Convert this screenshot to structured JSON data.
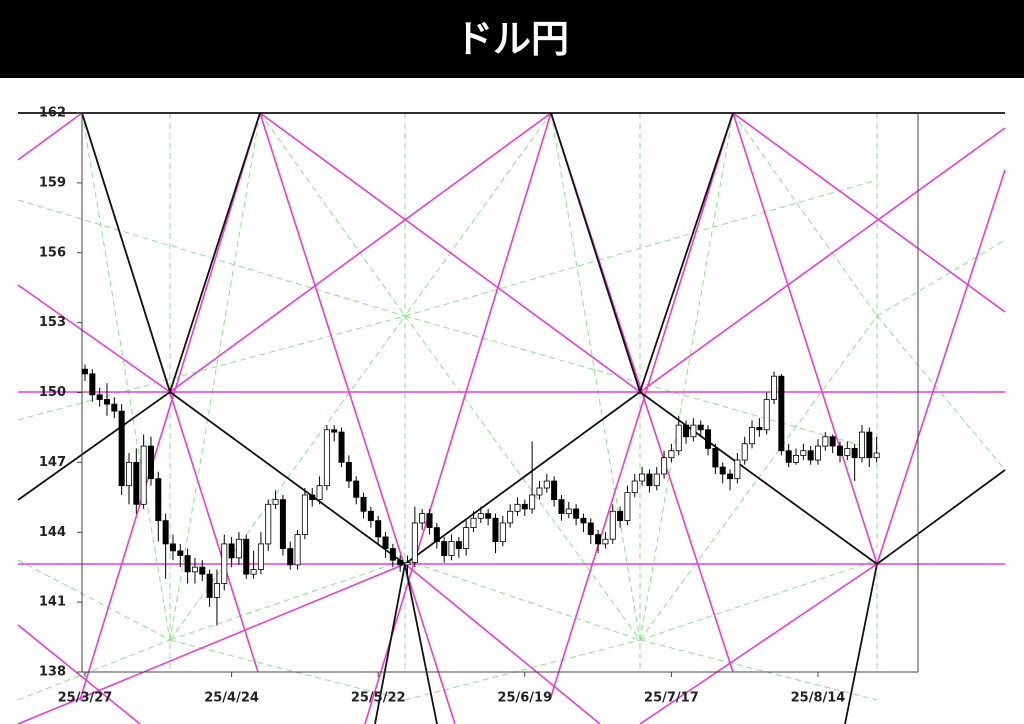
{
  "chart_data": {
    "type": "candlestick",
    "title": "ドル円",
    "categories": [
      "25/3/27",
      null,
      null,
      null,
      null,
      null,
      null,
      null,
      null,
      null,
      null,
      null,
      null,
      null,
      null,
      null,
      null,
      null,
      null,
      null,
      "25/4/24",
      null,
      null,
      null,
      null,
      null,
      null,
      null,
      null,
      null,
      null,
      null,
      null,
      null,
      null,
      null,
      null,
      null,
      null,
      null,
      "25/5/22",
      null,
      null,
      null,
      null,
      null,
      null,
      null,
      null,
      null,
      null,
      null,
      null,
      null,
      null,
      null,
      null,
      null,
      null,
      null,
      "25/6/19",
      null,
      null,
      null,
      null,
      null,
      null,
      null,
      null,
      null,
      null,
      null,
      null,
      null,
      null,
      null,
      null,
      null,
      null,
      null,
      "25/7/17",
      null,
      null,
      null,
      null,
      null,
      null,
      null,
      null,
      null,
      null,
      null,
      null,
      null,
      null,
      null,
      null,
      null,
      null,
      null,
      "25/8/14",
      null,
      null,
      null,
      null,
      null,
      null,
      null,
      null
    ],
    "open": [
      151.0,
      150.8,
      149.9,
      149.7,
      149.5,
      149.2,
      146.0,
      147.0,
      145.2,
      147.7,
      146.3,
      144.5,
      143.5,
      143.2,
      143.0,
      142.3,
      142.5,
      142.2,
      141.2,
      141.8,
      143.5,
      142.9,
      143.7,
      142.2,
      142.4,
      143.5,
      145.2,
      145.4,
      143.3,
      142.6,
      143.9,
      145.6,
      145.4,
      146.0,
      148.4,
      148.3,
      147.0,
      146.2,
      145.5,
      144.9,
      144.5,
      143.8,
      143.3,
      142.8,
      142.6,
      142.7,
      144.4,
      144.8,
      144.2,
      143.6,
      143.0,
      143.6,
      143.3,
      144.2,
      144.6,
      144.8,
      144.6,
      143.6,
      144.4,
      144.9,
      145.2,
      145.0,
      145.6,
      145.9,
      146.2,
      145.4,
      144.8,
      145.0,
      144.6,
      144.4,
      143.9,
      143.5,
      143.7,
      144.9,
      144.5,
      145.7,
      146.2,
      146.5,
      146.0,
      146.5,
      147.2,
      147.5,
      148.6,
      148.1,
      148.6,
      148.4,
      147.6,
      146.8,
      146.5,
      146.3,
      147.1,
      147.8,
      148.5,
      148.4,
      149.7,
      150.7,
      147.5,
      147.0,
      147.3,
      147.5,
      147.1,
      147.7,
      148.1,
      147.7,
      147.3,
      147.6,
      147.2,
      148.3,
      147.2
    ],
    "high": [
      151.2,
      151.0,
      150.2,
      150.4,
      149.8,
      149.5,
      147.4,
      147.6,
      148.2,
      148.1,
      146.6,
      144.8,
      143.9,
      143.5,
      143.3,
      142.9,
      142.8,
      142.4,
      142.4,
      143.9,
      143.8,
      144.0,
      143.9,
      143.2,
      144.0,
      145.4,
      145.8,
      145.6,
      143.6,
      144.1,
      145.9,
      145.9,
      146.4,
      148.6,
      148.6,
      148.5,
      147.3,
      146.4,
      145.7,
      145.1,
      144.7,
      144.0,
      143.5,
      143.0,
      143.0,
      145.1,
      145.0,
      145.0,
      144.4,
      143.8,
      143.9,
      143.8,
      144.5,
      144.9,
      145.1,
      145.0,
      144.8,
      144.7,
      145.2,
      145.5,
      145.4,
      147.9,
      146.2,
      146.5,
      146.4,
      145.6,
      145.3,
      145.2,
      144.8,
      144.6,
      144.1,
      144.0,
      145.2,
      145.1,
      146.0,
      146.5,
      146.8,
      146.7,
      146.8,
      147.5,
      147.8,
      149.0,
      148.8,
      148.9,
      148.8,
      148.6,
      147.8,
      147.0,
      146.7,
      147.4,
      148.1,
      148.8,
      148.9,
      150.0,
      150.9,
      150.8,
      147.8,
      147.6,
      147.8,
      147.7,
      148.0,
      148.3,
      148.2,
      147.9,
      147.9,
      147.8,
      148.6,
      148.5,
      148.1
    ],
    "low": [
      150.5,
      149.6,
      149.4,
      149.0,
      148.9,
      145.6,
      145.2,
      144.8,
      145.0,
      146.0,
      143.6,
      142.0,
      142.8,
      142.5,
      141.8,
      141.8,
      141.9,
      140.8,
      140.0,
      141.5,
      142.5,
      142.6,
      142.0,
      142.0,
      142.2,
      143.2,
      145.0,
      143.0,
      142.4,
      142.4,
      143.7,
      145.1,
      145.2,
      145.8,
      147.9,
      146.8,
      145.9,
      145.2,
      144.6,
      144.2,
      143.5,
      142.9,
      142.5,
      142.3,
      142.2,
      142.5,
      144.1,
      143.9,
      143.3,
      142.7,
      142.8,
      142.9,
      143.0,
      144.0,
      144.4,
      144.3,
      143.1,
      143.4,
      144.2,
      144.7,
      144.7,
      144.8,
      145.4,
      145.7,
      145.1,
      144.5,
      144.6,
      144.3,
      144.0,
      143.5,
      143.1,
      143.3,
      143.5,
      144.2,
      144.3,
      145.5,
      146.0,
      145.7,
      145.8,
      146.3,
      147.0,
      147.3,
      147.8,
      147.9,
      148.1,
      147.3,
      146.5,
      146.1,
      145.8,
      146.1,
      146.9,
      147.6,
      148.1,
      148.2,
      149.5,
      147.3,
      146.8,
      146.9,
      147.1,
      146.9,
      146.9,
      147.5,
      147.4,
      147.0,
      147.1,
      146.2,
      147.0,
      146.8,
      147.0
    ],
    "close": [
      150.8,
      149.9,
      149.7,
      149.5,
      149.2,
      146.0,
      147.0,
      145.2,
      147.7,
      146.3,
      144.5,
      143.5,
      143.2,
      143.0,
      142.3,
      142.5,
      142.2,
      141.2,
      141.8,
      143.5,
      142.9,
      143.7,
      142.2,
      142.4,
      143.5,
      145.2,
      145.4,
      143.3,
      142.6,
      143.9,
      145.6,
      145.4,
      146.0,
      148.4,
      148.3,
      147.0,
      146.2,
      145.5,
      144.9,
      144.5,
      143.8,
      143.3,
      142.8,
      142.6,
      142.7,
      144.4,
      144.8,
      144.2,
      143.6,
      143.0,
      143.6,
      143.3,
      144.2,
      144.6,
      144.8,
      144.6,
      143.6,
      144.4,
      144.9,
      145.2,
      145.0,
      145.6,
      145.9,
      146.2,
      145.4,
      144.8,
      145.0,
      144.6,
      144.4,
      143.9,
      143.5,
      143.7,
      144.9,
      144.5,
      145.7,
      146.2,
      146.5,
      146.0,
      146.5,
      147.2,
      147.5,
      148.6,
      148.1,
      148.6,
      148.4,
      147.6,
      146.8,
      146.5,
      146.3,
      147.1,
      147.8,
      148.5,
      148.4,
      149.7,
      150.7,
      147.5,
      147.0,
      147.3,
      147.5,
      147.1,
      147.7,
      148.1,
      147.7,
      147.3,
      147.6,
      147.2,
      148.3,
      147.2,
      147.4
    ],
    "ylim": [
      138,
      162
    ],
    "yticks": [
      138,
      141,
      144,
      147,
      150,
      153,
      156,
      159,
      162
    ]
  }
}
